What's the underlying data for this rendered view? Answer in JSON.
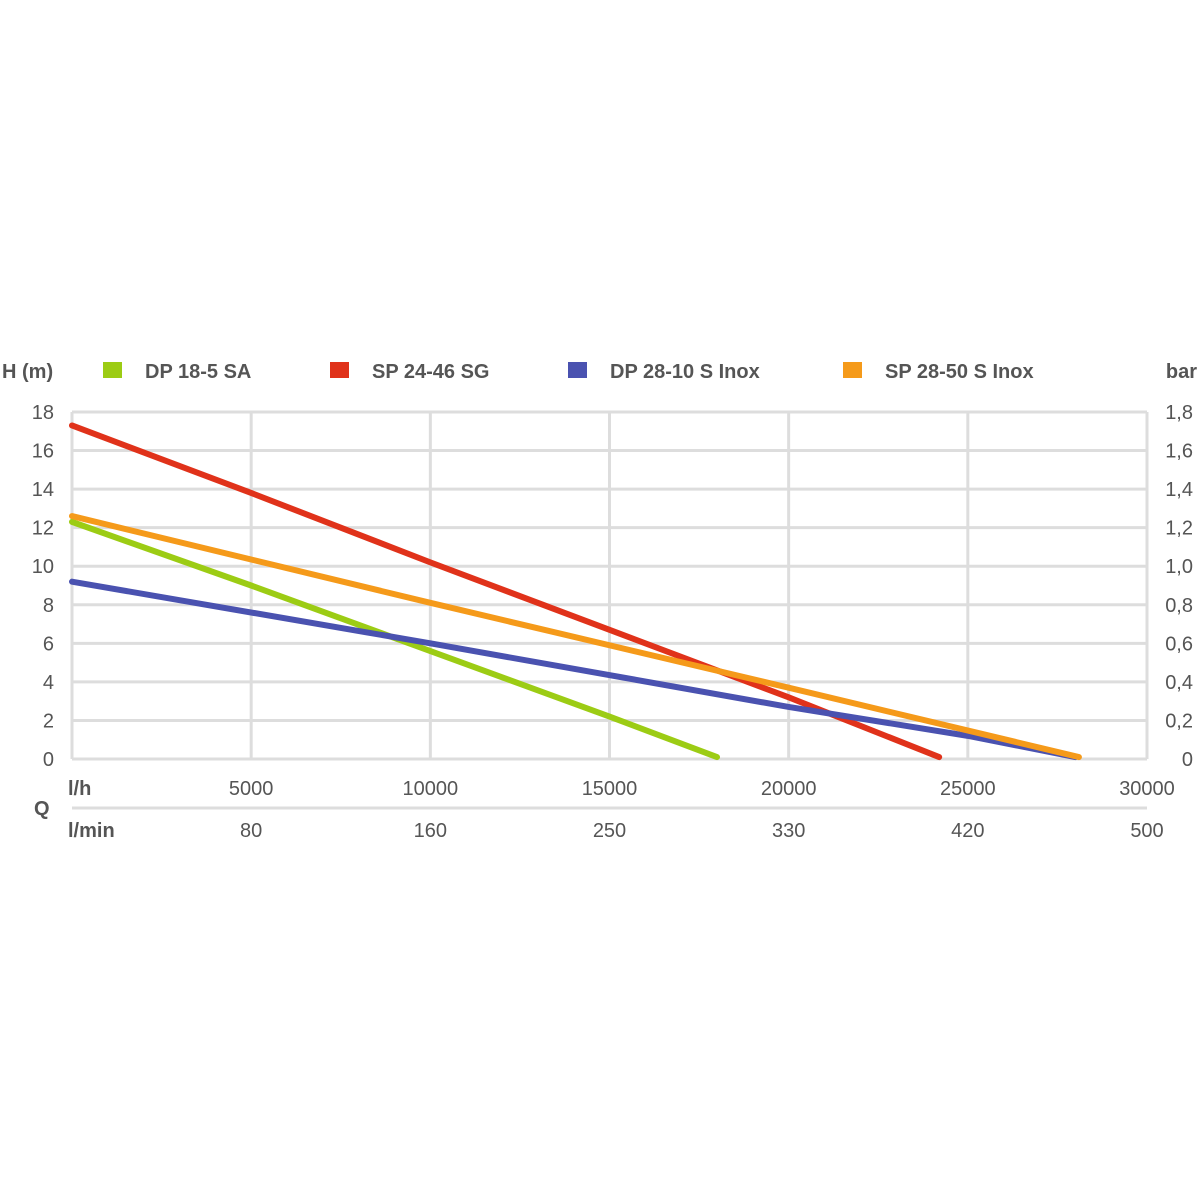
{
  "chart_data": {
    "type": "line",
    "title": "",
    "ylabel": "H (m)",
    "ylabel_right": "bar",
    "xlabel": "Q",
    "xlabel_primary_unit": "l/h",
    "xlabel_secondary_unit": "l/min",
    "xlim": [
      0,
      30000
    ],
    "ylim": [
      0,
      18
    ],
    "x_ticks": [
      5000,
      10000,
      15000,
      20000,
      25000,
      30000
    ],
    "x_tick_labels": [
      "5000",
      "10000",
      "15000",
      "20000",
      "25000",
      "30000"
    ],
    "x_secondary_tick_labels": [
      "80",
      "160",
      "250",
      "330",
      "420",
      "500"
    ],
    "y_ticks": [
      0,
      2,
      4,
      6,
      8,
      10,
      12,
      14,
      16,
      18
    ],
    "y_tick_labels": [
      "0",
      "2",
      "4",
      "6",
      "8",
      "10",
      "12",
      "14",
      "16",
      "18"
    ],
    "y_right_tick_labels": [
      "0",
      "0,2",
      "0,4",
      "0,6",
      "0,8",
      "1,0",
      "1,2",
      "1,4",
      "1,6",
      "1,8"
    ],
    "grid": true,
    "legend_position": "top",
    "series": [
      {
        "name": "DP 18-5 SA",
        "color": "#9ccc14",
        "x": [
          0,
          5000,
          10000,
          15000,
          18000
        ],
        "y": [
          12.3,
          9.0,
          5.6,
          2.2,
          0.1
        ]
      },
      {
        "name": "SP 24-46 SG",
        "color": "#e0321a",
        "x": [
          0,
          5000,
          10000,
          15000,
          20000,
          24200
        ],
        "y": [
          17.3,
          13.8,
          10.2,
          6.7,
          3.2,
          0.1
        ]
      },
      {
        "name": "DP 28-10 S Inox",
        "color": "#4a52b0",
        "x": [
          0,
          10000,
          20000,
          25000,
          28000
        ],
        "y": [
          9.2,
          6.0,
          2.7,
          1.2,
          0.1
        ]
      },
      {
        "name": "SP 28-50 S Inox",
        "color": "#f59a1a",
        "x": [
          0,
          10000,
          20000,
          28100
        ],
        "y": [
          12.6,
          8.1,
          3.7,
          0.1
        ]
      }
    ]
  }
}
